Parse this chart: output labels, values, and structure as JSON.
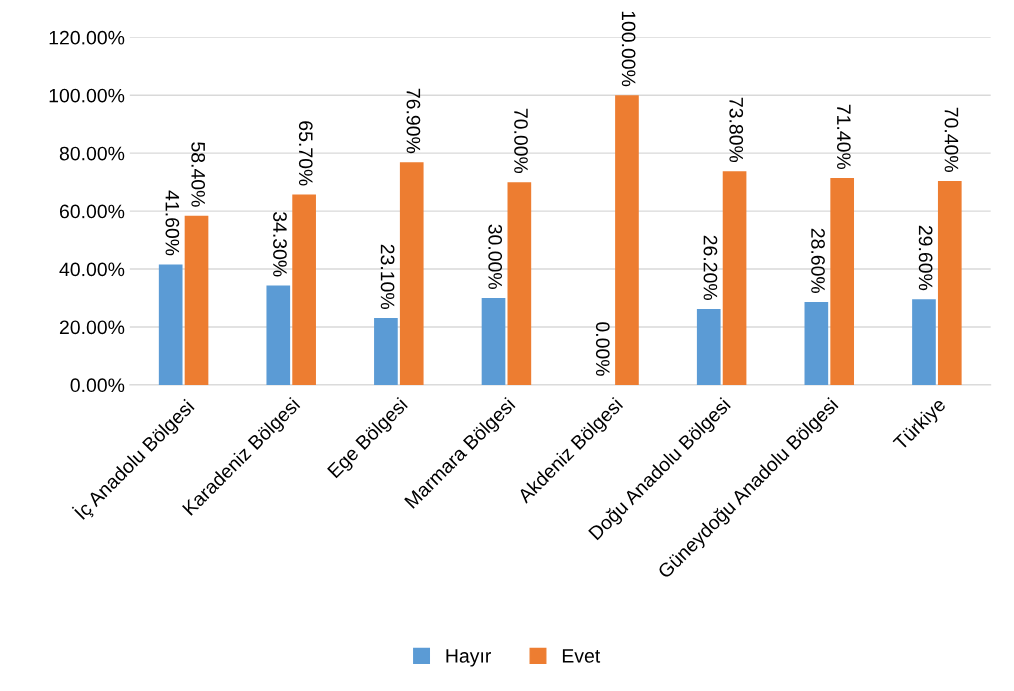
{
  "chart_data": {
    "type": "bar",
    "categories": [
      "İç Anadolu Bölgesi",
      "Karadeniz Bölgesi",
      "Ege Bölgesi",
      "Marmara Bölgesi",
      "Akdeniz Bölgesi",
      "Doğu Anadolu Bölgesi",
      "Güneydoğu Anadolu Bölgesi",
      "Türkiye"
    ],
    "series": [
      {
        "name": "Hayır",
        "color": "#5b9bd5",
        "values": [
          41.6,
          34.3,
          23.1,
          30.0,
          0.0,
          26.2,
          28.6,
          29.6
        ],
        "value_labels": [
          "41.60%",
          "34.30%",
          "23.10%",
          "30.00%",
          "0.00%",
          "26.20%",
          "28.60%",
          "29.60%"
        ]
      },
      {
        "name": "Evet",
        "color": "#ed7d31",
        "values": [
          58.4,
          65.7,
          76.9,
          70.0,
          100.0,
          73.8,
          71.4,
          70.4
        ],
        "value_labels": [
          "58.40%",
          "65.70%",
          "76.90%",
          "70.00%",
          "100.00%",
          "73.80%",
          "71.40%",
          "70.40%"
        ]
      }
    ],
    "ylim": [
      0,
      120
    ],
    "yticks": [
      {
        "value": 0,
        "label": "0.00%"
      },
      {
        "value": 20,
        "label": "20.00%"
      },
      {
        "value": 40,
        "label": "40.00%"
      },
      {
        "value": 60,
        "label": "60.00%"
      },
      {
        "value": 80,
        "label": "80.00%"
      },
      {
        "value": 100,
        "label": "100.00%"
      },
      {
        "value": 120,
        "label": "120.00%"
      }
    ],
    "grid": "y",
    "legend": "bottom"
  }
}
